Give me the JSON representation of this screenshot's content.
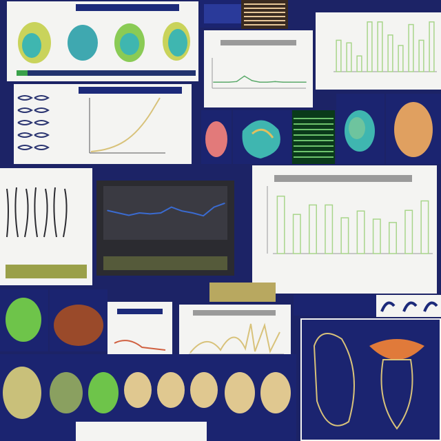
{
  "collage": {
    "tiles": [
      {
        "id": "seed-panel-top-left",
        "kind": "illustration"
      },
      {
        "id": "line-chart-small",
        "kind": "chart"
      },
      {
        "id": "bar-chart-top-right",
        "kind": "chart"
      },
      {
        "id": "sketch-panel",
        "kind": "illustration"
      },
      {
        "id": "curve-chart",
        "kind": "chart"
      },
      {
        "id": "dark-line-chart",
        "kind": "chart"
      },
      {
        "id": "large-bar-chart",
        "kind": "chart"
      },
      {
        "id": "seed-grid-bottom",
        "kind": "illustration"
      },
      {
        "id": "anatomy-panel-bottom-right",
        "kind": "illustration"
      }
    ]
  },
  "colors": {
    "background": "#1c2366",
    "panel_light": "#f4f4f2",
    "panel_navy": "#1b2470",
    "bar_green": "#a8d58a",
    "line_blue": "#3a6bd1",
    "seed_teal": "#3fb6b0",
    "seed_orange": "#e0a060",
    "seed_brown": "#9a4a2a"
  },
  "chart_data": [
    {
      "type": "bar",
      "categories": [
        "",
        "",
        "",
        "",
        "",
        "",
        "",
        "",
        "",
        ""
      ],
      "values": [
        0.6,
        0.55,
        0.3,
        0.95,
        0.95,
        0.7,
        0.5,
        0.9,
        0.6,
        0.95
      ],
      "ylim": [
        0,
        1
      ]
    },
    {
      "type": "bar",
      "categories": [
        "",
        "",
        "",
        "",
        "",
        "",
        "",
        "",
        "",
        ""
      ],
      "values": [
        0.85,
        0.58,
        0.72,
        0.72,
        0.53,
        0.63,
        0.51,
        0.46,
        0.64,
        0.78
      ],
      "ylim": [
        0,
        1
      ]
    },
    {
      "type": "line",
      "x": [
        0,
        1,
        2,
        3,
        4,
        5,
        6,
        7,
        8,
        9,
        10,
        11
      ],
      "series": [
        {
          "values": [
            0.55,
            0.5,
            0.45,
            0.5,
            0.48,
            0.5,
            0.62,
            0.54,
            0.5,
            0.44,
            0.62,
            0.7
          ]
        }
      ]
    },
    {
      "type": "line",
      "x": [
        0,
        1,
        2,
        3,
        4,
        5,
        6,
        7,
        8,
        9,
        10,
        11,
        12
      ],
      "series": [
        {
          "values": [
            0.2,
            0.2,
            0.2,
            0.22,
            0.4,
            0.25,
            0.2,
            0.2,
            0.22,
            0.2,
            0.2,
            0.2,
            0.2
          ]
        }
      ]
    }
  ]
}
